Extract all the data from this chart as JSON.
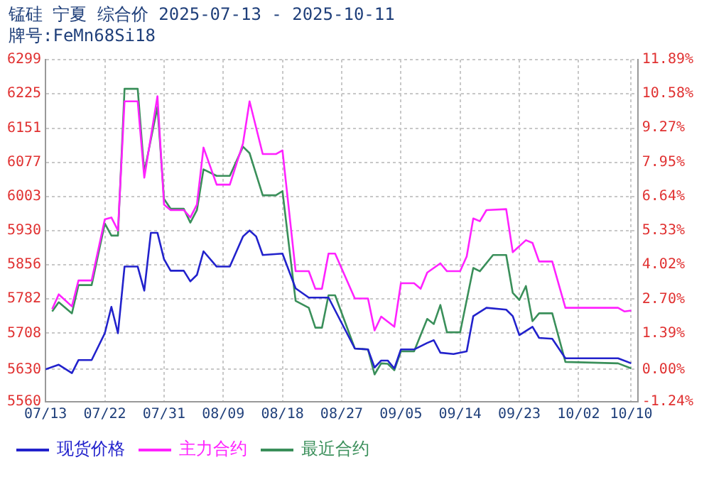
{
  "chart_data": {
    "type": "line",
    "title": "锰硅 宁夏 综合价 2025-07-13 - 2025-10-11",
    "subtitle": "牌号:FeMn68Si18",
    "xlim": [
      "2025-07-13",
      "2025-10-11"
    ],
    "xticks": [
      {
        "value": "2025-07-13",
        "label": "07/13"
      },
      {
        "value": "2025-07-22",
        "label": "07/22"
      },
      {
        "value": "2025-07-31",
        "label": "07/31"
      },
      {
        "value": "2025-08-09",
        "label": "08/09"
      },
      {
        "value": "2025-08-18",
        "label": "08/18"
      },
      {
        "value": "2025-08-27",
        "label": "08/27"
      },
      {
        "value": "2025-09-05",
        "label": "09/05"
      },
      {
        "value": "2025-09-14",
        "label": "09/14"
      },
      {
        "value": "2025-09-23",
        "label": "09/23"
      },
      {
        "value": "2025-10-02",
        "label": "10/02"
      },
      {
        "value": "2025-10-10",
        "label": "10/10"
      }
    ],
    "ylim": [
      5560,
      6299
    ],
    "yticks": [
      5560,
      5630,
      5708,
      5782,
      5856,
      5930,
      6003,
      6077,
      6151,
      6225,
      6299
    ],
    "y2lim": [
      -1.24,
      11.89
    ],
    "y2ticks": [
      {
        "value": -1.24,
        "label": "-1.24%"
      },
      {
        "value": 0,
        "label": "0.00%"
      },
      {
        "value": 1.39,
        "label": "1.39%"
      },
      {
        "value": 2.7,
        "label": "2.70%"
      },
      {
        "value": 4.02,
        "label": "4.02%"
      },
      {
        "value": 5.33,
        "label": "5.33%"
      },
      {
        "value": 6.64,
        "label": "6.64%"
      },
      {
        "value": 7.95,
        "label": "7.95%"
      },
      {
        "value": 9.27,
        "label": "9.27%"
      },
      {
        "value": 10.58,
        "label": "10.58%"
      },
      {
        "value": 11.89,
        "label": "11.89%"
      }
    ],
    "grid": true,
    "legend": "bottom",
    "series": [
      {
        "name": "现货价格",
        "color": "#2222cc",
        "x": [
          "2025-07-13",
          "2025-07-15",
          "2025-07-17",
          "2025-07-18",
          "2025-07-20",
          "2025-07-22",
          "2025-07-23",
          "2025-07-24",
          "2025-07-25",
          "2025-07-27",
          "2025-07-28",
          "2025-07-29",
          "2025-07-30",
          "2025-07-31",
          "2025-08-01",
          "2025-08-03",
          "2025-08-04",
          "2025-08-05",
          "2025-08-06",
          "2025-08-08",
          "2025-08-10",
          "2025-08-12",
          "2025-08-13",
          "2025-08-14",
          "2025-08-15",
          "2025-08-18",
          "2025-08-20",
          "2025-08-22",
          "2025-08-25",
          "2025-08-29",
          "2025-08-31",
          "2025-09-01",
          "2025-09-02",
          "2025-09-03",
          "2025-09-04",
          "2025-09-05",
          "2025-09-07",
          "2025-09-09",
          "2025-09-10",
          "2025-09-11",
          "2025-09-13",
          "2025-09-15",
          "2025-09-16",
          "2025-09-18",
          "2025-09-21",
          "2025-09-22",
          "2025-09-23",
          "2025-09-25",
          "2025-09-26",
          "2025-09-28",
          "2025-09-30",
          "2025-10-08",
          "2025-10-10"
        ],
        "values": [
          5630,
          5640,
          5622,
          5650,
          5650,
          5708,
          5765,
          5708,
          5852,
          5852,
          5800,
          5925,
          5925,
          5868,
          5843,
          5843,
          5820,
          5834,
          5885,
          5852,
          5852,
          5917,
          5930,
          5917,
          5877,
          5880,
          5805,
          5785,
          5785,
          5675,
          5673,
          5634,
          5649,
          5649,
          5632,
          5673,
          5673,
          5687,
          5693,
          5666,
          5663,
          5669,
          5745,
          5763,
          5759,
          5745,
          5704,
          5722,
          5698,
          5696,
          5654,
          5654,
          5643
        ]
      },
      {
        "name": "主力合约",
        "color": "#ff22ff",
        "x": [
          "2025-07-14",
          "2025-07-15",
          "2025-07-17",
          "2025-07-18",
          "2025-07-20",
          "2025-07-22",
          "2025-07-23",
          "2025-07-24",
          "2025-07-25",
          "2025-07-27",
          "2025-07-28",
          "2025-07-30",
          "2025-07-31",
          "2025-08-01",
          "2025-08-03",
          "2025-08-04",
          "2025-08-05",
          "2025-08-06",
          "2025-08-08",
          "2025-08-10",
          "2025-08-12",
          "2025-08-13",
          "2025-08-15",
          "2025-08-17",
          "2025-08-18",
          "2025-08-20",
          "2025-08-22",
          "2025-08-23",
          "2025-08-24",
          "2025-08-25",
          "2025-08-26",
          "2025-08-29",
          "2025-08-31",
          "2025-09-01",
          "2025-09-02",
          "2025-09-04",
          "2025-09-05",
          "2025-09-07",
          "2025-09-08",
          "2025-09-09",
          "2025-09-11",
          "2025-09-12",
          "2025-09-14",
          "2025-09-15",
          "2025-09-16",
          "2025-09-17",
          "2025-09-18",
          "2025-09-21",
          "2025-09-22",
          "2025-09-24",
          "2025-09-25",
          "2025-09-26",
          "2025-09-28",
          "2025-09-30",
          "2025-10-08",
          "2025-10-09",
          "2025-10-10"
        ],
        "values": [
          5760,
          5792,
          5766,
          5822,
          5822,
          5954,
          5958,
          5930,
          6209,
          6209,
          6044,
          6220,
          5986,
          5974,
          5974,
          5958,
          5986,
          6109,
          6029,
          6029,
          6118,
          6209,
          6095,
          6095,
          6103,
          5842,
          5842,
          5804,
          5804,
          5880,
          5880,
          5783,
          5783,
          5714,
          5744,
          5722,
          5816,
          5816,
          5804,
          5839,
          5859,
          5842,
          5842,
          5874,
          5956,
          5950,
          5974,
          5976,
          5883,
          5909,
          5903,
          5863,
          5863,
          5763,
          5763,
          5755,
          5757
        ]
      },
      {
        "name": "最近合约",
        "color": "#3a8f5a",
        "x": [
          "2025-07-14",
          "2025-07-15",
          "2025-07-17",
          "2025-07-18",
          "2025-07-20",
          "2025-07-22",
          "2025-07-23",
          "2025-07-24",
          "2025-07-25",
          "2025-07-27",
          "2025-07-28",
          "2025-07-30",
          "2025-07-31",
          "2025-08-01",
          "2025-08-03",
          "2025-08-04",
          "2025-08-05",
          "2025-08-06",
          "2025-08-08",
          "2025-08-10",
          "2025-08-12",
          "2025-08-13",
          "2025-08-15",
          "2025-08-17",
          "2025-08-18",
          "2025-08-20",
          "2025-08-22",
          "2025-08-23",
          "2025-08-24",
          "2025-08-25",
          "2025-08-26",
          "2025-08-29",
          "2025-08-31",
          "2025-09-01",
          "2025-09-02",
          "2025-09-03",
          "2025-09-04",
          "2025-09-05",
          "2025-09-07",
          "2025-09-09",
          "2025-09-10",
          "2025-09-11",
          "2025-09-12",
          "2025-09-14",
          "2025-09-16",
          "2025-09-17",
          "2025-09-19",
          "2025-09-21",
          "2025-09-22",
          "2025-09-23",
          "2025-09-24",
          "2025-09-25",
          "2025-09-26",
          "2025-09-28",
          "2025-09-30",
          "2025-10-08",
          "2025-10-10"
        ],
        "values": [
          5755,
          5775,
          5751,
          5812,
          5812,
          5945,
          5919,
          5919,
          6236,
          6236,
          6056,
          6197,
          5998,
          5977,
          5977,
          5947,
          5974,
          6062,
          6048,
          6048,
          6111,
          6097,
          6006,
          6006,
          6015,
          5778,
          5763,
          5720,
          5720,
          5790,
          5790,
          5675,
          5673,
          5619,
          5643,
          5642,
          5628,
          5669,
          5669,
          5739,
          5728,
          5769,
          5710,
          5710,
          5849,
          5842,
          5877,
          5877,
          5795,
          5780,
          5810,
          5734,
          5751,
          5751,
          5646,
          5643,
          5632
        ]
      }
    ]
  }
}
